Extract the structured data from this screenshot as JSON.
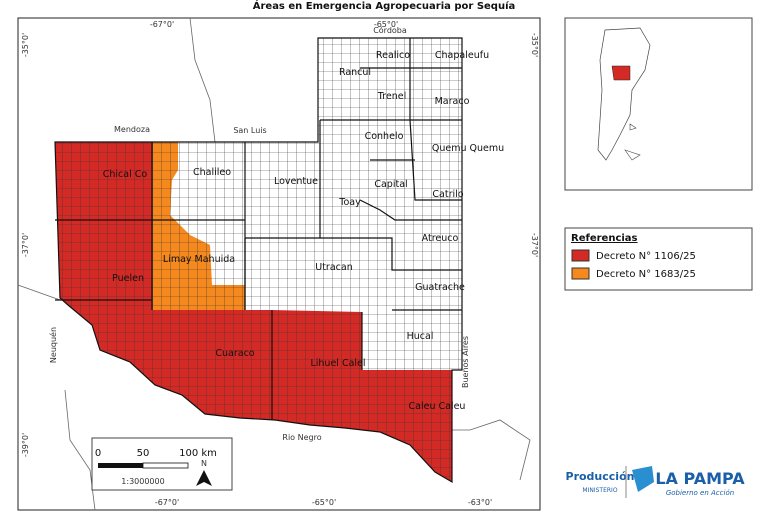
{
  "title": "Áreas en Emergencia Agropecuaria por Sequía",
  "graticule": {
    "top": [
      "-67°0'",
      "-65°0'"
    ],
    "left": [
      "-35°0'",
      "-37°0'",
      "-39°0'"
    ],
    "right": [
      "-35°0'",
      "-37°0'"
    ],
    "bottom": [
      "-67°0'",
      "-65°0'",
      "-63°0'"
    ]
  },
  "neighbors": [
    "Córdoba",
    "Mendoza",
    "San Luis",
    "Neuquén",
    "Rio Negro",
    "Buenos Aires"
  ],
  "departments": [
    "Realico",
    "Chapaleufu",
    "Rancul",
    "Trenel",
    "Maraco",
    "Conhelo",
    "Quemu Quemu",
    "Capital",
    "Toay",
    "Catrilo",
    "Chalileo",
    "Loventue",
    "Chical Co",
    "Atreuco",
    "Limay Mahuida",
    "Utracan",
    "Puelen",
    "Guatrache",
    "Hucal",
    "Cuaraco",
    "Lihuel Calel",
    "Caleu Caleu"
  ],
  "legend": {
    "title": "Referencias",
    "items": [
      {
        "label": "Decreto N° 1106/25",
        "color": "#d42a26"
      },
      {
        "label": "Decreto N° 1683/25",
        "color": "#f5891e"
      }
    ]
  },
  "scale_bar": {
    "labels": [
      "0",
      "50",
      "100 km"
    ],
    "ratio": "1:3000000",
    "north": "N"
  },
  "logo": {
    "ministry": "Producción",
    "sub": "MINISTERIO",
    "province": "LA PAMPA",
    "slogan": "Gobierno en Acción"
  }
}
